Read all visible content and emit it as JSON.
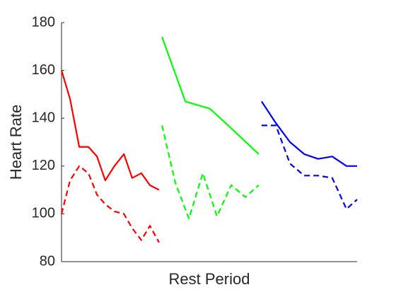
{
  "chart_data": {
    "type": "line",
    "xlabel": "Rest Period",
    "ylabel": "Heart Rate",
    "xlim": [
      0,
      100
    ],
    "ylim": [
      80,
      180
    ],
    "yticks": [
      80,
      100,
      120,
      140,
      160,
      180
    ],
    "series": [
      {
        "color": "#ff0000",
        "dashed": false,
        "x": [
          0,
          2.9,
          6,
          9.1,
          12,
          14.8,
          17.9,
          21.1,
          23.9,
          27,
          29.9,
          33
        ],
        "values": [
          160,
          148,
          128,
          128,
          124,
          114,
          120,
          125,
          115,
          117,
          112,
          110
        ]
      },
      {
        "color": "#ff0000",
        "dashed": true,
        "x": [
          0,
          2.9,
          6,
          9.1,
          12,
          14.8,
          17.9,
          21.1,
          23.9,
          27,
          29.9,
          33
        ],
        "values": [
          100,
          114,
          120,
          117,
          108,
          104,
          101,
          100,
          94,
          89,
          95,
          88
        ]
      },
      {
        "color": "#00ff00",
        "dashed": false,
        "x": [
          34,
          41.9,
          50.2,
          58.1,
          66.7
        ],
        "values": [
          174,
          147,
          144,
          135,
          125
        ]
      },
      {
        "color": "#00ff00",
        "dashed": true,
        "x": [
          34,
          38.5,
          43.1,
          47.8,
          52.6,
          57.4,
          62.2,
          66.7
        ],
        "values": [
          137,
          113,
          98,
          117,
          99,
          112,
          107,
          112
        ]
      },
      {
        "color": "#0000ff",
        "dashed": false,
        "x": [
          67.7,
          72.5,
          77.3,
          82.1,
          86.8,
          91.6,
          96.4,
          100
        ],
        "values": [
          147,
          138,
          130,
          125,
          123,
          124,
          120,
          120
        ]
      },
      {
        "color": "#0000ff",
        "dashed": true,
        "x": [
          67.7,
          72.5,
          77.3,
          82.1,
          86.8,
          91.6,
          96.4,
          100
        ],
        "values": [
          137,
          137,
          121,
          116,
          116,
          115,
          102,
          106
        ]
      }
    ]
  }
}
